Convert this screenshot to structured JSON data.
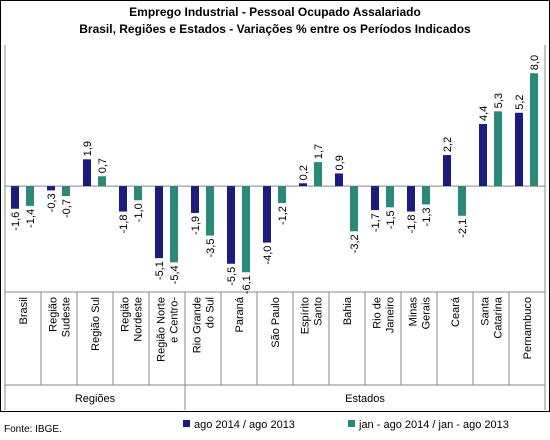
{
  "chart_data": {
    "type": "bar",
    "title": "Emprego Industrial - Pessoal Ocupado Assalariado",
    "subtitle": "Brasil, Regiões e Estados - Variações % entre os Períodos Indicados",
    "categories": [
      [
        "Brasil"
      ],
      [
        "Região",
        "Sudeste"
      ],
      [
        "Região Sul"
      ],
      [
        "Região",
        "Nordeste"
      ],
      [
        "Região Norte",
        "e Centro-"
      ],
      [
        "Rio Grande",
        "do Sul"
      ],
      [
        "Paraná"
      ],
      [
        "São Paulo"
      ],
      [
        "Espírito",
        "Santo"
      ],
      [
        "Bahia"
      ],
      [
        "Rio de",
        "Janeiro"
      ],
      [
        "Minas",
        "Gerais"
      ],
      [
        "Ceará"
      ],
      [
        "Santa",
        "Catarina"
      ],
      [
        "Pernambuco"
      ]
    ],
    "groups": [
      {
        "name": "Regiões",
        "count": 5
      },
      {
        "name": "Estados",
        "count": 10
      }
    ],
    "series": [
      {
        "name": "ago 2014 / ago 2013",
        "color": "#1c1c80",
        "values": [
          -1.6,
          -0.3,
          1.9,
          -1.8,
          -5.1,
          -1.9,
          -5.5,
          -4.0,
          0.2,
          0.9,
          -1.7,
          -1.8,
          2.2,
          4.4,
          5.2
        ],
        "value_labels": [
          "-1,6",
          "-0,3",
          "1,9",
          "-1,8",
          "-5,1",
          "-1,9",
          "-5,5",
          "-4,0",
          "0,2",
          "0,9",
          "-1,7",
          "-1,8",
          "2,2",
          "4,4",
          "5,2"
        ]
      },
      {
        "name": "jan - ago 2014 / jan - ago 2013",
        "color": "#2a8a78",
        "values": [
          -1.4,
          -0.7,
          0.7,
          -1.0,
          -5.4,
          -3.5,
          -6.1,
          -1.2,
          1.7,
          -3.2,
          -1.5,
          -1.3,
          -2.1,
          5.3,
          8.0
        ],
        "value_labels": [
          "-1,4",
          "-0,7",
          "0,7",
          "-1,0",
          "-5,4",
          "-3,5",
          "-6,1",
          "-1,2",
          "1,7",
          "-3,2",
          "-1,5",
          "-1,3",
          "-2,1",
          "5,3",
          "8,0"
        ]
      }
    ],
    "ylim": [
      -7.5,
      10
    ],
    "source": "Fonte: IBGE."
  }
}
